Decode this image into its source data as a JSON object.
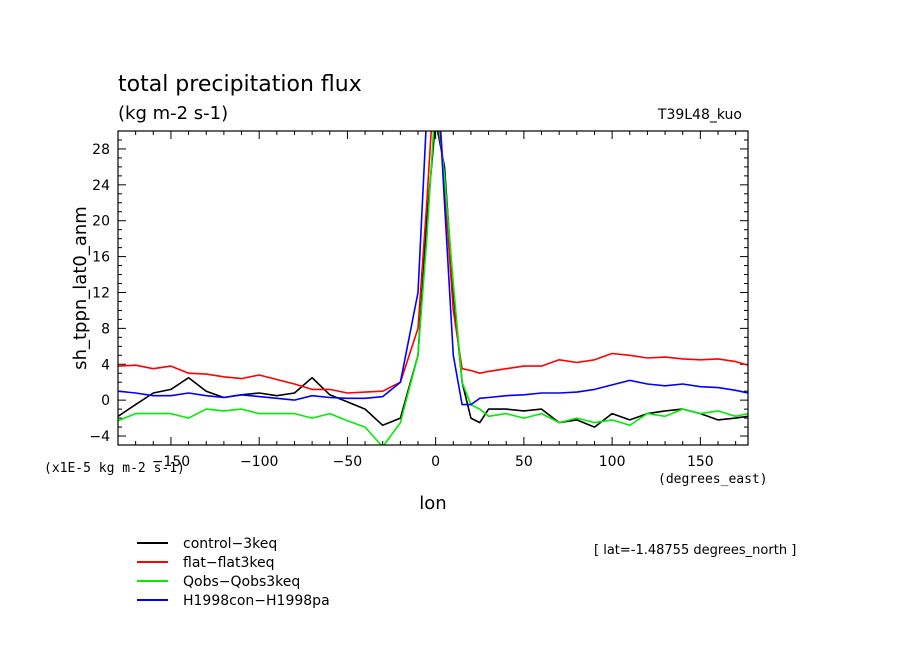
{
  "chart_data": {
    "type": "line",
    "title": "total precipitation flux",
    "subtitle": "(kg m-2 s-1)",
    "model_label": "T39L48_kuo",
    "ylabel": "sh_tppn_lat0_anm",
    "xlabel": "lon",
    "x_units": "(degrees_east)",
    "y_scale_note": "(x1E-5 kg m-2 s-1)",
    "annotation": "[ lat=-1.48755 degrees_north ]",
    "xlim": [
      -180,
      177
    ],
    "ylim": [
      -5,
      30
    ],
    "x_ticks": [
      -150,
      -100,
      -50,
      0,
      50,
      100,
      150
    ],
    "x_tick_labels": [
      "−150",
      "−100",
      "−50",
      "0",
      "50",
      "100",
      "150"
    ],
    "y_ticks": [
      -4,
      0,
      4,
      8,
      12,
      16,
      20,
      24,
      28
    ],
    "y_tick_labels": [
      "−4",
      "0",
      "4",
      "8",
      "12",
      "16",
      "20",
      "24",
      "28"
    ],
    "legend_placement": "bottom-left",
    "series": [
      {
        "name": "control−3keq",
        "color": "#000000",
        "x": [
          -180,
          -170,
          -160,
          -150,
          -140,
          -130,
          -120,
          -110,
          -100,
          -90,
          -80,
          -70,
          -60,
          -50,
          -40,
          -30,
          -20,
          -10,
          -5,
          0,
          5,
          10,
          15,
          20,
          25,
          30,
          40,
          50,
          60,
          70,
          80,
          90,
          100,
          110,
          120,
          130,
          140,
          150,
          160,
          170,
          177
        ],
        "y": [
          -1.8,
          -0.5,
          0.8,
          1.2,
          2.5,
          1.0,
          0.3,
          0.6,
          0.8,
          0.5,
          0.8,
          2.5,
          0.6,
          -0.2,
          -1.0,
          -2.8,
          -2.0,
          5.0,
          20.0,
          31.2,
          26.0,
          12.0,
          2.0,
          -2.0,
          -2.5,
          -1.0,
          -1.0,
          -1.2,
          -1.0,
          -2.5,
          -2.2,
          -3.0,
          -1.5,
          -2.2,
          -1.5,
          -1.2,
          -1.0,
          -1.5,
          -2.2,
          -2.0,
          -1.8
        ]
      },
      {
        "name": "flat−flat3keq",
        "color": "#ff0000",
        "x": [
          -180,
          -170,
          -160,
          -150,
          -140,
          -130,
          -120,
          -110,
          -100,
          -90,
          -80,
          -70,
          -60,
          -50,
          -40,
          -30,
          -20,
          -10,
          -5,
          0,
          5,
          10,
          15,
          20,
          25,
          30,
          40,
          50,
          60,
          70,
          80,
          90,
          100,
          110,
          120,
          130,
          140,
          150,
          160,
          170,
          177
        ],
        "y": [
          3.8,
          3.9,
          3.5,
          3.8,
          3.0,
          2.9,
          2.6,
          2.4,
          2.8,
          2.3,
          1.8,
          1.2,
          1.2,
          0.8,
          0.9,
          1.0,
          2.0,
          8.0,
          22.0,
          38.0,
          24.0,
          10.0,
          3.5,
          3.3,
          3.0,
          3.2,
          3.5,
          3.8,
          3.8,
          4.5,
          4.2,
          4.5,
          5.2,
          5.0,
          4.7,
          4.8,
          4.6,
          4.5,
          4.6,
          4.3,
          3.9
        ]
      },
      {
        "name": "Qobs−Qobs3keq",
        "color": "#00ee00",
        "x": [
          -180,
          -170,
          -160,
          -150,
          -140,
          -130,
          -120,
          -110,
          -100,
          -90,
          -80,
          -70,
          -60,
          -50,
          -40,
          -30,
          -20,
          -10,
          -5,
          0,
          5,
          10,
          15,
          20,
          25,
          30,
          40,
          50,
          60,
          70,
          80,
          90,
          100,
          110,
          120,
          130,
          140,
          150,
          160,
          170,
          177
        ],
        "y": [
          -2.3,
          -1.5,
          -1.5,
          -1.5,
          -2.0,
          -1.0,
          -1.2,
          -1.0,
          -1.5,
          -1.5,
          -1.5,
          -2.0,
          -1.5,
          -2.3,
          -3.0,
          -5.2,
          -2.5,
          5.0,
          18.0,
          33.7,
          25.0,
          13.0,
          2.0,
          -0.5,
          -1.0,
          -1.8,
          -1.5,
          -2.0,
          -1.5,
          -2.5,
          -2.0,
          -2.5,
          -2.2,
          -2.8,
          -1.5,
          -1.8,
          -1.0,
          -1.5,
          -1.2,
          -1.8,
          -1.5
        ]
      },
      {
        "name": "H1998con−H1998pa",
        "color": "#0000ff",
        "x": [
          -180,
          -170,
          -160,
          -150,
          -140,
          -130,
          -120,
          -110,
          -100,
          -90,
          -80,
          -70,
          -60,
          -50,
          -40,
          -30,
          -20,
          -10,
          -5,
          0,
          5,
          10,
          15,
          20,
          25,
          30,
          40,
          50,
          60,
          70,
          80,
          90,
          100,
          110,
          120,
          130,
          140,
          150,
          160,
          170,
          177
        ],
        "y": [
          1.0,
          0.8,
          0.5,
          0.5,
          0.8,
          0.5,
          0.3,
          0.6,
          0.4,
          0.2,
          0.0,
          0.5,
          0.3,
          0.2,
          0.2,
          0.4,
          2.0,
          12.0,
          32.0,
          40.0,
          22.0,
          5.0,
          -0.5,
          -0.5,
          0.2,
          0.3,
          0.5,
          0.6,
          0.8,
          0.8,
          0.9,
          1.2,
          1.7,
          2.2,
          1.8,
          1.6,
          1.8,
          1.5,
          1.4,
          1.1,
          0.8
        ]
      }
    ]
  }
}
